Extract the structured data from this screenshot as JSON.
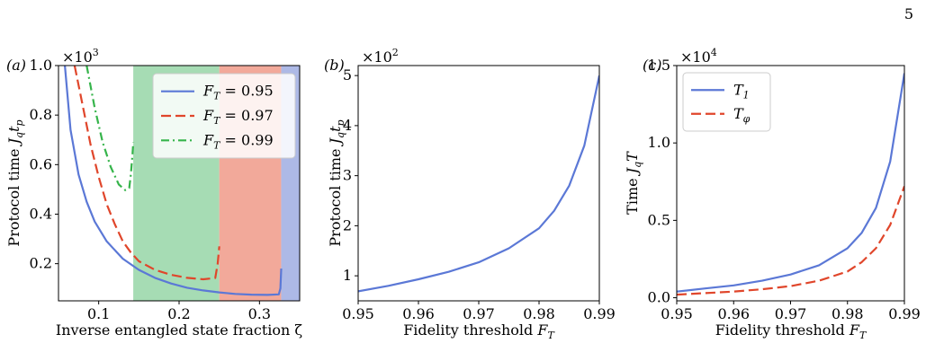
{
  "page": {
    "number": "5"
  },
  "chart_data": [
    {
      "type": "line",
      "panel_label": "(a)",
      "xlabel": "Inverse entangled state fraction ζ",
      "ylabel": "Protocol time J_q t_p",
      "ylabel_text": "Protocol time",
      "ylabel_var": "J",
      "ylabel_sub1": "q",
      "ylabel_var2": "t",
      "ylabel_sub2": "p",
      "y_multiplier": "×10",
      "y_multiplier_exp": "3",
      "xlim": [
        0.05,
        0.35
      ],
      "ylim": [
        0.05,
        1.0
      ],
      "x_ticks": [
        0.1,
        0.2,
        0.3
      ],
      "x_tick_labels": [
        "0.1",
        "0.2",
        "0.3"
      ],
      "y_ticks": [
        0.2,
        0.4,
        0.6,
        0.8,
        1.0
      ],
      "y_tick_labels": [
        "0.2",
        "0.4",
        "0.6",
        "0.8",
        "1.0"
      ],
      "legend_position": "top-right",
      "shaded_regions": [
        {
          "x": [
            0.143,
            0.25
          ],
          "color": "#a6dcb4"
        },
        {
          "x": [
            0.25,
            0.327
          ],
          "color": "#f2a99a"
        },
        {
          "x": [
            0.327,
            0.35
          ],
          "color": "#adb9e6"
        }
      ],
      "series": [
        {
          "name": "F_T = 0.95",
          "legend_var": "F",
          "legend_sub": "T",
          "legend_val": " = 0.95",
          "color": "#5b78d6",
          "dash": "solid",
          "x": [
            0.058,
            0.065,
            0.075,
            0.085,
            0.095,
            0.11,
            0.13,
            0.15,
            0.17,
            0.19,
            0.21,
            0.23,
            0.25,
            0.27,
            0.29,
            0.31,
            0.324,
            0.326,
            0.327
          ],
          "y": [
            1.0,
            0.74,
            0.56,
            0.45,
            0.37,
            0.29,
            0.22,
            0.175,
            0.143,
            0.12,
            0.103,
            0.092,
            0.084,
            0.078,
            0.075,
            0.074,
            0.076,
            0.1,
            0.18
          ]
        },
        {
          "name": "F_T = 0.97",
          "legend_var": "F",
          "legend_sub": "T",
          "legend_val": " = 0.97",
          "color": "#e0462b",
          "dash": "dashed",
          "x": [
            0.07,
            0.08,
            0.09,
            0.1,
            0.11,
            0.12,
            0.13,
            0.14,
            0.15,
            0.17,
            0.19,
            0.21,
            0.23,
            0.245,
            0.248,
            0.25
          ],
          "y": [
            1.0,
            0.84,
            0.68,
            0.55,
            0.44,
            0.36,
            0.29,
            0.245,
            0.21,
            0.175,
            0.155,
            0.143,
            0.137,
            0.142,
            0.2,
            0.27
          ]
        },
        {
          "name": "F_T = 0.99",
          "legend_var": "F",
          "legend_sub": "T",
          "legend_val": " = 0.99",
          "color": "#36b44b",
          "dash": "dashdot",
          "x": [
            0.085,
            0.095,
            0.105,
            0.115,
            0.125,
            0.133,
            0.138,
            0.14,
            0.142,
            0.143
          ],
          "y": [
            1.0,
            0.83,
            0.69,
            0.59,
            0.52,
            0.497,
            0.505,
            0.56,
            0.64,
            0.69
          ]
        }
      ]
    },
    {
      "type": "line",
      "panel_label": "(b)",
      "xlabel": "Fidelity threshold F_T",
      "xlabel_text": "Fidelity threshold",
      "xlabel_var": "F",
      "xlabel_sub": "T",
      "ylabel": "Protocol time J_q t_p",
      "ylabel_text": "Protocol time",
      "ylabel_var": "J",
      "ylabel_sub1": "q",
      "ylabel_var2": "t",
      "ylabel_sub2": "p",
      "y_multiplier": "×10",
      "y_multiplier_exp": "2",
      "xlim": [
        0.95,
        0.99
      ],
      "ylim": [
        0.5,
        5.2
      ],
      "x_ticks": [
        0.95,
        0.96,
        0.97,
        0.98,
        0.99
      ],
      "x_tick_labels": [
        "0.95",
        "0.96",
        "0.97",
        "0.98",
        "0.99"
      ],
      "y_ticks": [
        1,
        2,
        3,
        4,
        5
      ],
      "y_tick_labels": [
        "1",
        "2",
        "3",
        "4",
        "5"
      ],
      "series": [
        {
          "color": "#5b78d6",
          "dash": "solid",
          "x": [
            0.95,
            0.955,
            0.96,
            0.965,
            0.97,
            0.975,
            0.98,
            0.9825,
            0.985,
            0.9875,
            0.99
          ],
          "y": [
            0.69,
            0.8,
            0.93,
            1.08,
            1.27,
            1.55,
            1.95,
            2.3,
            2.8,
            3.6,
            5.0
          ]
        }
      ]
    },
    {
      "type": "line",
      "panel_label": "(c)",
      "xlabel": "Fidelity threshold F_T",
      "xlabel_text": "Fidelity threshold",
      "xlabel_var": "F",
      "xlabel_sub": "T",
      "ylabel": "Time J_q T",
      "ylabel_text": "Time",
      "ylabel_var": "J",
      "ylabel_sub1": "q",
      "ylabel_var2": "T",
      "y_multiplier": "×10",
      "y_multiplier_exp": "4",
      "xlim": [
        0.95,
        0.99
      ],
      "ylim": [
        -0.02,
        1.5
      ],
      "x_ticks": [
        0.95,
        0.96,
        0.97,
        0.98,
        0.99
      ],
      "x_tick_labels": [
        "0.95",
        "0.96",
        "0.97",
        "0.98",
        "0.99"
      ],
      "y_ticks": [
        0.0,
        0.5,
        1.0,
        1.5
      ],
      "y_tick_labels": [
        "0.0",
        "0.5",
        "1.0",
        "1.5"
      ],
      "legend_position": "top-left",
      "series": [
        {
          "name": "T_1",
          "legend_var": "T",
          "legend_sub": "1",
          "color": "#5b78d6",
          "dash": "solid",
          "x": [
            0.95,
            0.955,
            0.96,
            0.965,
            0.97,
            0.975,
            0.98,
            0.9825,
            0.985,
            0.9875,
            0.99
          ],
          "y": [
            0.04,
            0.06,
            0.08,
            0.11,
            0.15,
            0.21,
            0.32,
            0.42,
            0.58,
            0.88,
            1.45
          ]
        },
        {
          "name": "T_φ",
          "legend_var": "T",
          "legend_sub": "φ",
          "color": "#e0462b",
          "dash": "dashed",
          "x": [
            0.95,
            0.955,
            0.96,
            0.965,
            0.97,
            0.975,
            0.98,
            0.9825,
            0.985,
            0.9875,
            0.99
          ],
          "y": [
            0.02,
            0.03,
            0.04,
            0.055,
            0.075,
            0.11,
            0.17,
            0.23,
            0.32,
            0.47,
            0.72
          ]
        }
      ]
    }
  ]
}
